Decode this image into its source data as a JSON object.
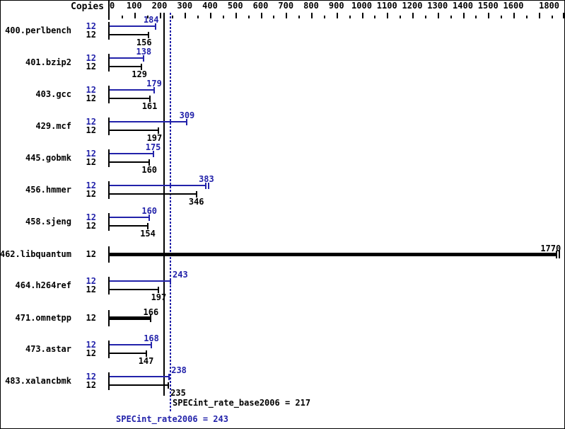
{
  "header": {
    "copies_label": "Copies"
  },
  "axis": {
    "min": 0,
    "max": 1800,
    "major_tick_step": 100,
    "minor_tick_step": 50,
    "tick_labels": [
      0,
      100,
      200,
      300,
      400,
      500,
      600,
      700,
      800,
      900,
      1000,
      1100,
      1200,
      1300,
      1400,
      1500,
      1600,
      1800
    ]
  },
  "colors": {
    "peak_blue": "#2222aa",
    "base_black": "#000000",
    "background": "#ffffff"
  },
  "rows": [
    {
      "name": "400.perlbench",
      "merged": false,
      "copies_peak": "12",
      "copies_base": "12",
      "peak": 184,
      "base": 156,
      "peak_label": "184",
      "base_label": "156",
      "peak_label_dx": -6,
      "base_label_dx": -6,
      "double_cap": false
    },
    {
      "name": "401.bzip2",
      "merged": false,
      "copies_peak": "12",
      "copies_base": "12",
      "peak": 138,
      "base": 129,
      "peak_label": "138",
      "base_label": "129",
      "peak_label_dx": 0,
      "base_label_dx": -3,
      "double_cap": false
    },
    {
      "name": "403.gcc",
      "merged": false,
      "copies_peak": "12",
      "copies_base": "12",
      "peak": 179,
      "base": 161,
      "peak_label": "179",
      "base_label": "161",
      "peak_label_dx": 0,
      "base_label_dx": 0,
      "double_cap": false
    },
    {
      "name": "429.mcf",
      "merged": false,
      "copies_peak": "12",
      "copies_base": "12",
      "peak": 309,
      "base": 197,
      "peak_label": "309",
      "base_label": "197",
      "peak_label_dx": 0,
      "base_label_dx": -6,
      "double_cap": false
    },
    {
      "name": "445.gobmk",
      "merged": false,
      "copies_peak": "12",
      "copies_base": "12",
      "peak": 175,
      "base": 160,
      "peak_label": "175",
      "base_label": "160",
      "peak_label_dx": 0,
      "base_label_dx": 0,
      "double_cap": false
    },
    {
      "name": "456.hmmer",
      "merged": false,
      "copies_peak": "12",
      "copies_base": "12",
      "peak": 383,
      "base": 346,
      "peak_label": "383",
      "base_label": "346",
      "peak_label_dx": 1,
      "base_label_dx": 0,
      "double_cap": true
    },
    {
      "name": "458.sjeng",
      "merged": false,
      "copies_peak": "12",
      "copies_base": "12",
      "peak": 160,
      "base": 154,
      "peak_label": "160",
      "base_label": "154",
      "peak_label_dx": 0,
      "base_label_dx": 0,
      "double_cap": false
    },
    {
      "name": "462.libquantum",
      "merged": true,
      "copies": "12",
      "value": 1770,
      "value_label": "1770",
      "value_label_dx": -8,
      "double_cap": true
    },
    {
      "name": "464.h264ref",
      "merged": false,
      "copies_peak": "12",
      "copies_base": "12",
      "peak": 243,
      "base": 197,
      "peak_label": "243",
      "base_label": "197",
      "peak_label_dx": 14,
      "base_label_dx": 0,
      "double_cap": false
    },
    {
      "name": "471.omnetpp",
      "merged": true,
      "copies": "12",
      "value": 166,
      "value_label": "166",
      "value_label_dx": 0,
      "double_cap": false
    },
    {
      "name": "473.astar",
      "merged": false,
      "copies_peak": "12",
      "copies_base": "12",
      "peak": 168,
      "base": 147,
      "peak_label": "168",
      "base_label": "147",
      "peak_label_dx": 0,
      "base_label_dx": 0,
      "double_cap": false
    },
    {
      "name": "483.xalancbmk",
      "merged": false,
      "copies_peak": "12",
      "copies_base": "12",
      "peak": 238,
      "base": 235,
      "peak_label": "238",
      "base_label": "235",
      "peak_label_dx": 14,
      "base_label_dx": 14,
      "double_cap": false
    }
  ],
  "summary": {
    "base_text": "SPECint_rate_base2006 = 217",
    "peak_text": "SPECint_rate2006 = 243"
  },
  "chart_data": {
    "type": "bar",
    "orientation": "horizontal",
    "title": "",
    "xlabel": "",
    "ylabel": "Copies",
    "xlim": [
      0,
      1830
    ],
    "grid": false,
    "legend_position": "none",
    "categories": [
      "400.perlbench",
      "401.bzip2",
      "403.gcc",
      "429.mcf",
      "445.gobmk",
      "456.hmmer",
      "458.sjeng",
      "462.libquantum",
      "464.h264ref",
      "471.omnetpp",
      "473.astar",
      "483.xalancbmk"
    ],
    "copies": [
      12,
      12,
      12,
      12,
      12,
      12,
      12,
      12,
      12,
      12,
      12,
      12
    ],
    "series": [
      {
        "name": "SPECint_rate2006 (peak)",
        "color": "#2222aa",
        "values": [
          184,
          138,
          179,
          309,
          175,
          383,
          160,
          1770,
          243,
          166,
          168,
          238
        ]
      },
      {
        "name": "SPECint_rate_base2006 (base)",
        "color": "#000000",
        "values": [
          156,
          129,
          161,
          197,
          160,
          346,
          154,
          1770,
          197,
          166,
          147,
          235
        ]
      }
    ],
    "merged_single_bar_rows": [
      "462.libquantum",
      "471.omnetpp"
    ],
    "reference_lines": [
      {
        "label": "SPECint_rate_base2006",
        "value": 217,
        "style": "solid",
        "color": "#000000"
      },
      {
        "label": "SPECint_rate2006",
        "value": 243,
        "style": "dotted",
        "color": "#2222aa"
      }
    ]
  }
}
